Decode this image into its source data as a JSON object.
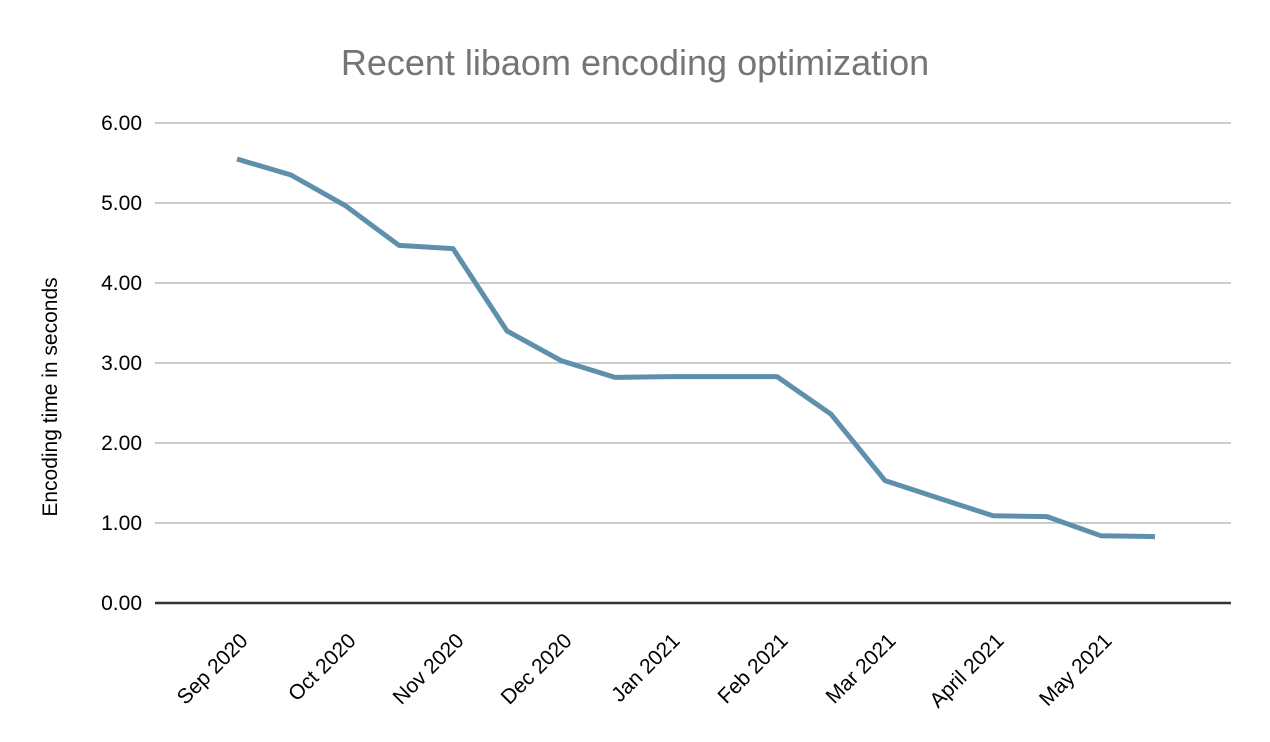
{
  "chart_data": {
    "type": "line",
    "title": "Recent libaom encoding optimization",
    "xlabel": "",
    "ylabel": "Encoding time in seconds",
    "ylim": [
      0,
      6
    ],
    "grid": "horizontal",
    "legend": "none",
    "y_tick_labels": [
      "0.00",
      "1.00",
      "2.00",
      "3.00",
      "4.00",
      "5.00",
      "6.00"
    ],
    "x_tick_labels": [
      "Sep 2020",
      "Oct 2020",
      "Nov 2020",
      "Dec 2020",
      "Jan 2021",
      "Feb 2021",
      "Mar 2021",
      "April 2021",
      "May 2021"
    ],
    "series": [
      {
        "name": "encoding-time-seconds",
        "color": "#5e90ac",
        "x_months": [
          0,
          0.5,
          1,
          1.5,
          2,
          2.5,
          3,
          3.5,
          4,
          4.5,
          5,
          5.5,
          6,
          6.5,
          7,
          7.5,
          8,
          8.5
        ],
        "values": [
          5.55,
          5.35,
          4.97,
          4.47,
          4.43,
          3.4,
          3.03,
          2.82,
          2.83,
          2.83,
          2.83,
          2.36,
          1.53,
          1.31,
          1.09,
          1.08,
          0.84,
          0.83
        ]
      }
    ],
    "colors": {
      "title": "#757575",
      "axis_text": "#000000",
      "gridline": "#cccccc",
      "baseline": "#333333",
      "background": "#ffffff"
    }
  }
}
